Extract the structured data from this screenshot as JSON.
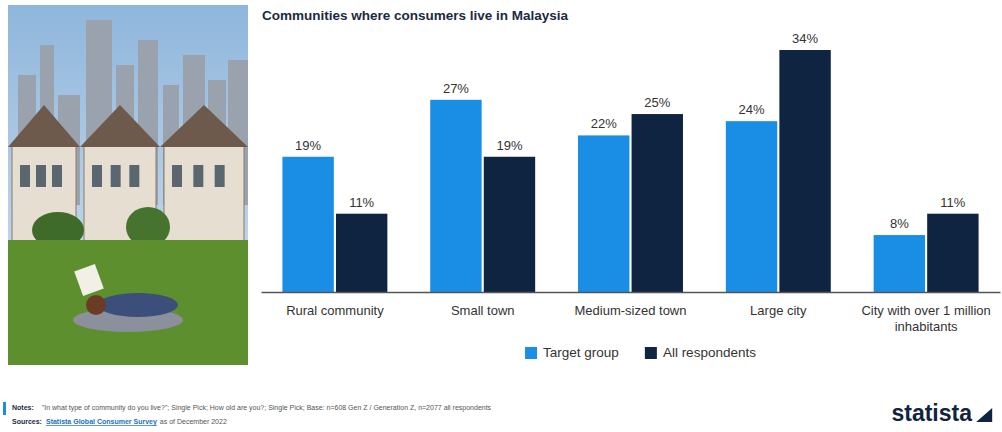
{
  "chart_data": {
    "type": "bar",
    "title": "Communities where consumers live in Malaysia",
    "categories": [
      "Rural community",
      "Small town",
      "Medium-sized town",
      "Large city",
      "City with over 1 million inhabitants"
    ],
    "series": [
      {
        "name": "Target group",
        "color": "#1a8de4",
        "values": [
          19,
          27,
          22,
          24,
          8
        ],
        "value_labels": [
          "19%",
          "27%",
          "22%",
          "24%",
          "8%"
        ]
      },
      {
        "name": "All respondents",
        "color": "#0f2440",
        "values": [
          11,
          19,
          25,
          34,
          11
        ],
        "value_labels": [
          "11%",
          "19%",
          "25%",
          "34%",
          "11%"
        ]
      }
    ],
    "ylim": [
      0,
      34
    ],
    "grid": false,
    "data_labels": true,
    "tick_labels": "x",
    "legend": "bottom"
  },
  "notes": {
    "label": "Notes:",
    "text": "\"In what type of community do you live?\"; Single Pick; How old are you?; Single Pick; Base: n=608 Gen Z / Generation Z, n=2077 all respondents"
  },
  "sources": {
    "label": "Sources:",
    "link": "Statista Global Consumer Survey",
    "text": "as of December 2022"
  },
  "brand": "statista"
}
